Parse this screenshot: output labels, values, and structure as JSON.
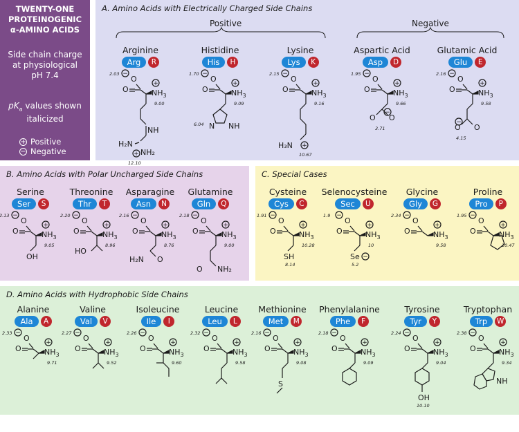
{
  "sidebar": {
    "title_l1": "TWENTY-ONE",
    "title_l2": "PROTEINOGENIC",
    "title_l3": "α-AMINO ACIDS",
    "charge_l1": "Side chain charge",
    "charge_l2": "at physiological",
    "charge_l3": "pH 7.4",
    "pka_l1": "pK",
    "pka_sub": "a",
    "pka_l1b": " values shown",
    "pka_l2": "italicized",
    "plus_symbol": "+",
    "minus_symbol": "−",
    "positive": "Positive",
    "negative": "Negative"
  },
  "sections": {
    "a": "A. Amino Acids with Electrically Charged Side Chains",
    "b": "B. Amino Acids with Polar Uncharged Side Chains",
    "c": "C. Special Cases",
    "d": "D. Amino Acids with Hydrophobic Side Chains"
  },
  "groups": {
    "positive": "Positive",
    "negative": "Negative"
  },
  "atoms": {
    "O": "O",
    "NH3": "NH",
    "three": "3",
    "NH2": "NH",
    "two": "2",
    "H2N": "H",
    "H2N_n": "N",
    "H3N": "H",
    "NH": "NH",
    "N": "N",
    "H": "H",
    "OH": "OH",
    "HO": "HO",
    "SH": "SH",
    "Se": "Se",
    "S": "S",
    "plus": "+",
    "minus": "−"
  },
  "aa": {
    "arg": {
      "name": "Arginine",
      "code3": "Arg",
      "code1": "R",
      "pka1": "2.03",
      "pka2": "9.00",
      "pka3": "12.10"
    },
    "his": {
      "name": "Histidine",
      "code3": "His",
      "code1": "H",
      "pka1": "1.70",
      "pka2": "9.09",
      "pka3": "6.04"
    },
    "lys": {
      "name": "Lysine",
      "code3": "Lys",
      "code1": "K",
      "pka1": "2.15",
      "pka2": "9.16",
      "pka3": "10.67"
    },
    "asp": {
      "name": "Aspartic Acid",
      "code3": "Asp",
      "code1": "D",
      "pka1": "1.95",
      "pka2": "9.66",
      "pka3": "3.71"
    },
    "glu": {
      "name": "Glutamic Acid",
      "code3": "Glu",
      "code1": "E",
      "pka1": "2.16",
      "pka2": "9.58",
      "pka3": "4.15"
    },
    "ser": {
      "name": "Serine",
      "code3": "Ser",
      "code1": "S",
      "pka1": "2.13",
      "pka2": "9.05"
    },
    "thr": {
      "name": "Threonine",
      "code3": "Thr",
      "code1": "T",
      "pka1": "2.20",
      "pka2": "8.96"
    },
    "asn": {
      "name": "Asparagine",
      "code3": "Asn",
      "code1": "N",
      "pka1": "2.16",
      "pka2": "8.76"
    },
    "gln": {
      "name": "Glutamine",
      "code3": "Gln",
      "code1": "Q",
      "pka1": "2.18",
      "pka2": "9.00"
    },
    "cys": {
      "name": "Cysteine",
      "code3": "Cys",
      "code1": "C",
      "pka1": "1.91",
      "pka2": "10.28",
      "pka3": "8.14"
    },
    "sec": {
      "name": "Selenocysteine",
      "code3": "Sec",
      "code1": "U",
      "pka1": "1.9",
      "pka2": "10",
      "pka3": "5.2"
    },
    "gly": {
      "name": "Glycine",
      "code3": "Gly",
      "code1": "G",
      "pka1": "2.34",
      "pka2": "9.58"
    },
    "pro": {
      "name": "Proline",
      "code3": "Pro",
      "code1": "P",
      "pka1": "1.95",
      "pka2": "10.47"
    },
    "ala": {
      "name": "Alanine",
      "code3": "Ala",
      "code1": "A",
      "pka1": "2.33",
      "pka2": "9.71"
    },
    "val": {
      "name": "Valine",
      "code3": "Val",
      "code1": "V",
      "pka1": "2.27",
      "pka2": "9.52"
    },
    "ile": {
      "name": "Isoleucine",
      "code3": "Ile",
      "code1": "I",
      "pka1": "2.26",
      "pka2": "9.60"
    },
    "leu": {
      "name": "Leucine",
      "code3": "Leu",
      "code1": "L",
      "pka1": "2.32",
      "pka2": "9.58"
    },
    "met": {
      "name": "Methionine",
      "code3": "Met",
      "code1": "M",
      "pka1": "2.16",
      "pka2": "9.08"
    },
    "phe": {
      "name": "Phenylalanine",
      "code3": "Phe",
      "code1": "F",
      "pka1": "2.18",
      "pka2": "9.09"
    },
    "tyr": {
      "name": "Tyrosine",
      "code3": "Tyr",
      "code1": "Y",
      "pka1": "2.24",
      "pka2": "9.04",
      "pka3": "10.10"
    },
    "trp": {
      "name": "Tryptophan",
      "code3": "Trp",
      "code1": "W",
      "pka1": "2.38",
      "pka2": "9.34"
    }
  },
  "colors": {
    "sidebar": "#7b4b88",
    "charged": "#dcdcf2",
    "polar": "#e6d3ea",
    "special": "#fbf5c3",
    "hydrophobic": "#dcf0d8",
    "code3_badge": "#1e86d6",
    "code1_badge": "#c0262d"
  }
}
